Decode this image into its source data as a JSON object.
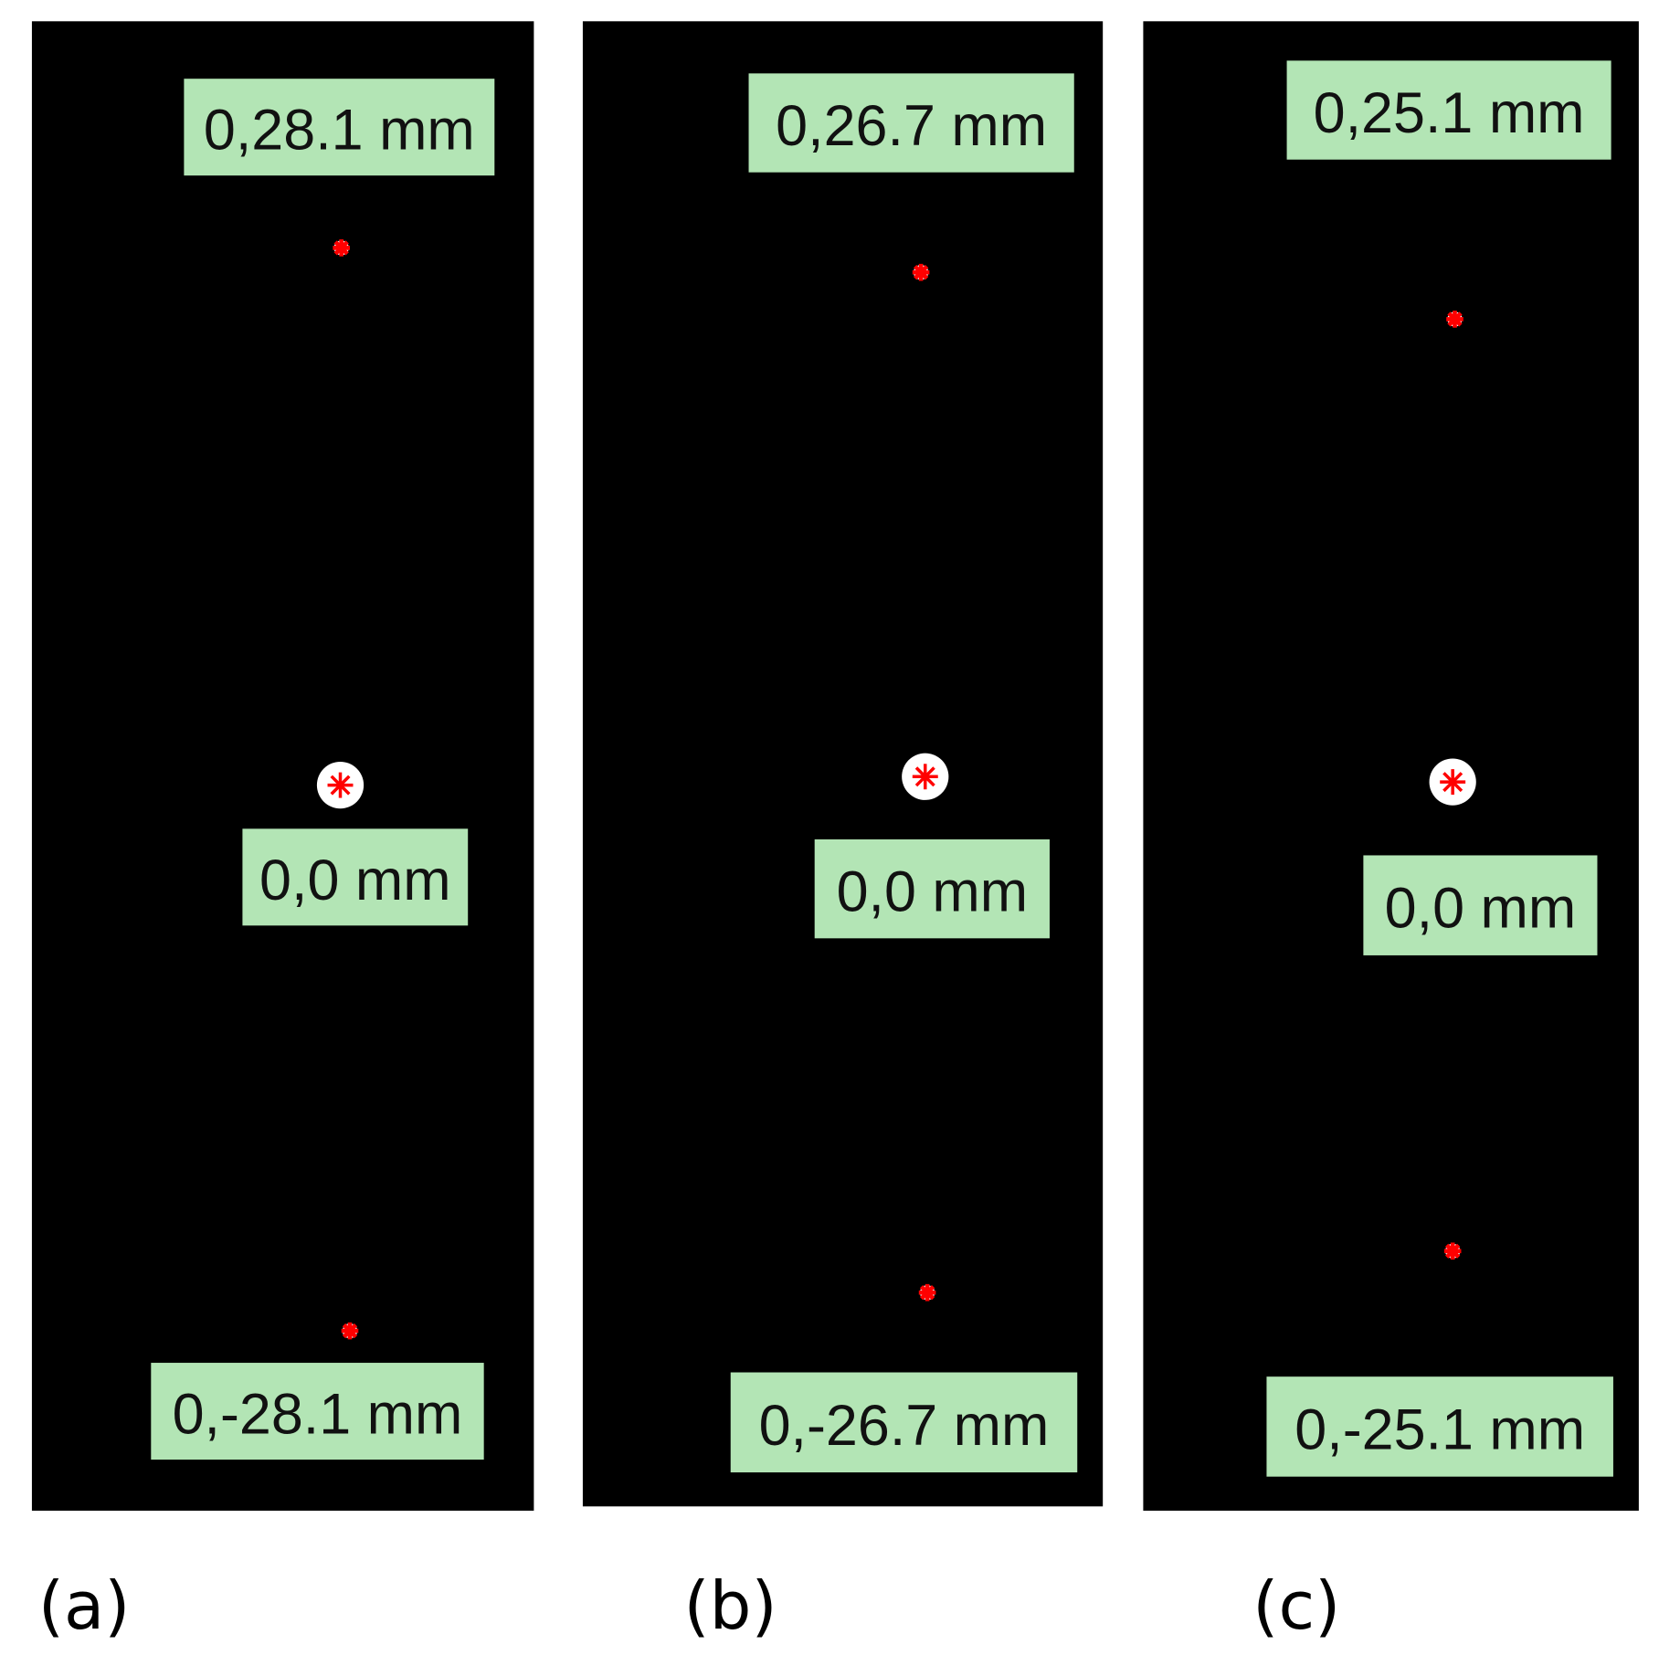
{
  "panels": [
    {
      "label_top": "0,28.1 mm",
      "label_middle": "0,0 mm",
      "label_bottom": "0,-28.1 mm",
      "caption": "(a)"
    },
    {
      "label_top": "0,26.7 mm",
      "label_middle": "0,0 mm",
      "label_bottom": "0,-26.7 mm",
      "caption": "(b)"
    },
    {
      "label_top": "0,25.1 mm",
      "label_middle": "0,0 mm",
      "label_bottom": "0,-25.1 mm",
      "caption": "(c)"
    }
  ]
}
